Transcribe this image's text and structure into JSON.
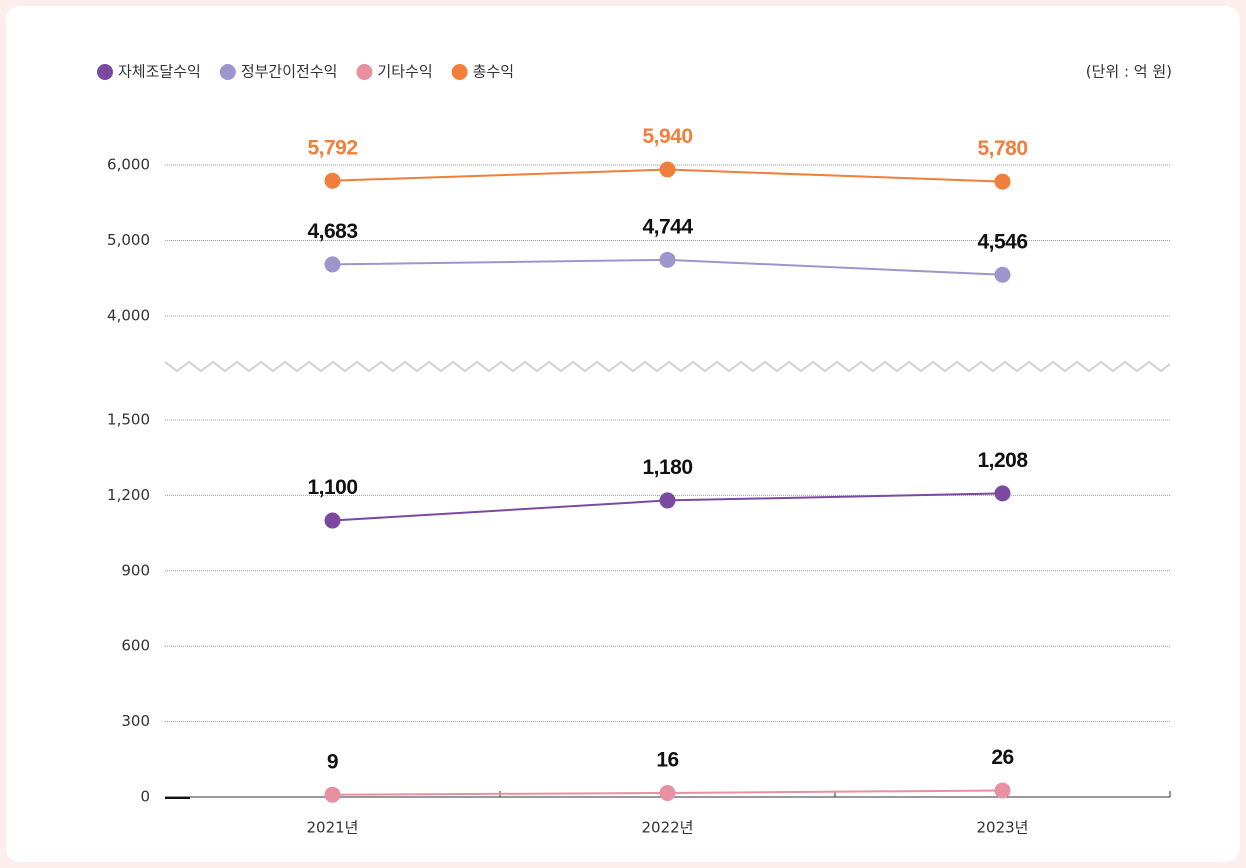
{
  "chart_data": {
    "type": "line",
    "unit_note": "(단위 : 억 원)",
    "categories": [
      "2021년",
      "2022년",
      "2023년"
    ],
    "ylim": [
      0,
      1500
    ],
    "yticks": [
      0,
      300,
      600,
      900,
      {
        "value": 1200,
        "label": "1,200"
      },
      {
        "value": 1500,
        "label": "1,500"
      }
    ],
    "y2lim": [
      4000,
      6000
    ],
    "y2ticks": [
      {
        "value": 4000,
        "label": "4,000"
      },
      {
        "value": 5000,
        "label": "5,000"
      },
      {
        "value": 6000,
        "label": "6,000"
      }
    ],
    "grid": true,
    "legend": "top-left",
    "series": [
      {
        "name": "자체조달수익",
        "color": "#7b4aa0",
        "values": [
          1100,
          1180,
          1208
        ],
        "value_labels": [
          "1,100",
          "1,180",
          "1,208"
        ]
      },
      {
        "name": "정부간이전수익",
        "color": "#9b97cc",
        "axis": "y2",
        "values": [
          4683,
          4744,
          4546
        ],
        "value_labels": [
          "4,683",
          "4,744",
          "4,546"
        ]
      },
      {
        "name": "기타수익",
        "color": "#e88fa0",
        "values": [
          9,
          16,
          26
        ]
      },
      {
        "name": "총수익",
        "color": "#f07f3c",
        "axis": "y2",
        "values": [
          5792,
          5940,
          5780
        ],
        "value_labels": [
          "5,792",
          "5,940",
          "5,780"
        ]
      }
    ]
  }
}
